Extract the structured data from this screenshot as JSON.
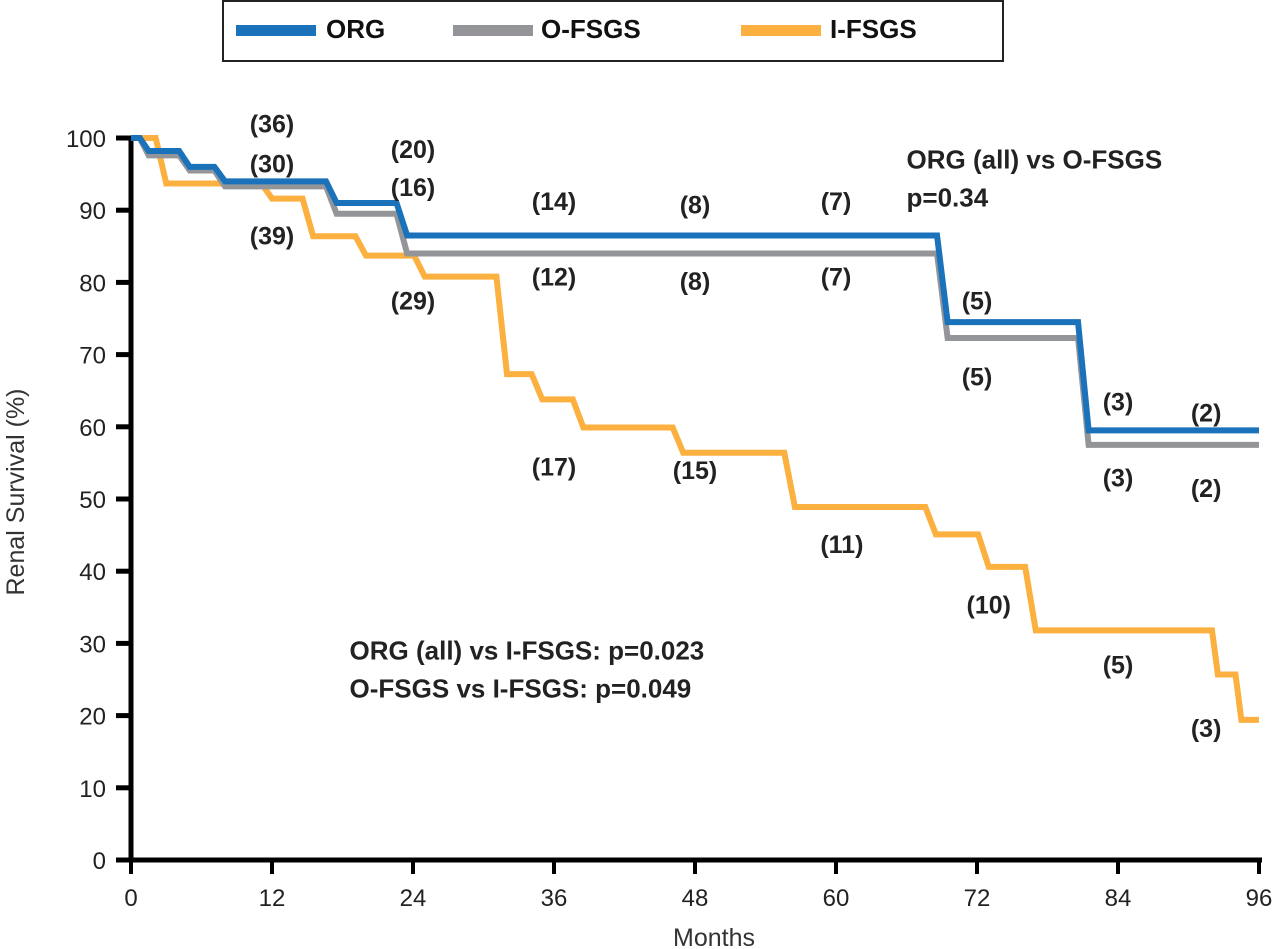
{
  "chart_data": {
    "type": "line",
    "subtype": "kaplan-meier step",
    "title": "",
    "xlabel": "Months",
    "ylabel": "Renal Survival (%)",
    "xlim": [
      0,
      96
    ],
    "ylim": [
      0,
      100
    ],
    "x_ticks": [
      0,
      12,
      24,
      36,
      48,
      60,
      72,
      84,
      96
    ],
    "y_ticks": [
      0,
      10,
      20,
      30,
      40,
      50,
      60,
      70,
      80,
      90,
      100
    ],
    "grid": false,
    "legend": {
      "placement": "top-center",
      "boxed": true,
      "entries": [
        "ORG",
        "O-FSGS",
        "I-FSGS"
      ]
    },
    "series": [
      {
        "name": "ORG",
        "color": "#1a72bb",
        "steps": [
          [
            0,
            100
          ],
          [
            1.5,
            98.2
          ],
          [
            5,
            96
          ],
          [
            8,
            94
          ],
          [
            17.5,
            91
          ],
          [
            23.5,
            86.5
          ],
          [
            69.5,
            74.5
          ],
          [
            81.5,
            59.5
          ],
          [
            96,
            59.5
          ]
        ]
      },
      {
        "name": "O-FSGS",
        "color": "#939598",
        "steps": [
          [
            0,
            100
          ],
          [
            1.5,
            97.6
          ],
          [
            5,
            95.5
          ],
          [
            8,
            93.3
          ],
          [
            17.5,
            89.5
          ],
          [
            23.5,
            84
          ],
          [
            69.5,
            72.3
          ],
          [
            81.5,
            57.5
          ],
          [
            96,
            57.5
          ]
        ]
      },
      {
        "name": "I-FSGS",
        "color": "#fbb040",
        "steps": [
          [
            0,
            100
          ],
          [
            3,
            93.7
          ],
          [
            12,
            91.6
          ],
          [
            15.5,
            86.4
          ],
          [
            20,
            83.7
          ],
          [
            25,
            80.8
          ],
          [
            32,
            67.3
          ],
          [
            35,
            63.8
          ],
          [
            38.5,
            59.9
          ],
          [
            47,
            56.4
          ],
          [
            56.5,
            48.9
          ],
          [
            68.5,
            45.1
          ],
          [
            73,
            40.6
          ],
          [
            74.5,
            40.6
          ],
          [
            77,
            31.8
          ],
          [
            91.5,
            31.8
          ],
          [
            92.5,
            25.7
          ],
          [
            93.5,
            25.7
          ],
          [
            94.5,
            19.4
          ],
          [
            96,
            19.4
          ]
        ]
      }
    ],
    "at_risk_labels": [
      {
        "series": "ORG",
        "x": 12,
        "y": 102,
        "text": "(36)"
      },
      {
        "series": "O-FSGS",
        "x": 12,
        "y": 96.5,
        "text": "(30)"
      },
      {
        "series": "I-FSGS",
        "x": 12,
        "y": 86.5,
        "text": "(39)"
      },
      {
        "series": "ORG",
        "x": 24,
        "y": 98.5,
        "text": "(20)"
      },
      {
        "series": "O-FSGS",
        "x": 24,
        "y": 93.2,
        "text": "(16)"
      },
      {
        "series": "I-FSGS",
        "x": 24,
        "y": 77.5,
        "text": "(29)"
      },
      {
        "series": "ORG",
        "x": 36,
        "y": 91.3,
        "text": "(14)"
      },
      {
        "series": "O-FSGS",
        "x": 36,
        "y": 80.8,
        "text": "(12)"
      },
      {
        "series": "ORG",
        "x": 48,
        "y": 90.8,
        "text": "(8)"
      },
      {
        "series": "O-FSGS",
        "x": 48,
        "y": 80.2,
        "text": "(8)"
      },
      {
        "series": "ORG",
        "x": 60,
        "y": 91.3,
        "text": "(7)"
      },
      {
        "series": "O-FSGS",
        "x": 60,
        "y": 80.8,
        "text": "(7)"
      },
      {
        "series": "ORG",
        "x": 72,
        "y": 77.5,
        "text": "(5)"
      },
      {
        "series": "O-FSGS",
        "x": 72,
        "y": 67,
        "text": "(5)"
      },
      {
        "series": "ORG",
        "x": 84,
        "y": 63.5,
        "text": "(3)"
      },
      {
        "series": "O-FSGS",
        "x": 84,
        "y": 53,
        "text": "(3)"
      },
      {
        "series": "ORG",
        "x": 91.5,
        "y": 62,
        "text": "(2)"
      },
      {
        "series": "O-FSGS",
        "x": 91.5,
        "y": 51.5,
        "text": "(2)"
      },
      {
        "series": "I-FSGS",
        "x": 36,
        "y": 54.5,
        "text": "(17)"
      },
      {
        "series": "I-FSGS",
        "x": 48,
        "y": 54,
        "text": "(15)"
      },
      {
        "series": "I-FSGS",
        "x": 60.5,
        "y": 43.8,
        "text": "(11)"
      },
      {
        "series": "I-FSGS",
        "x": 73,
        "y": 35.4,
        "text": "(10)"
      },
      {
        "series": "I-FSGS",
        "x": 84,
        "y": 27.1,
        "text": "(5)"
      },
      {
        "series": "I-FSGS",
        "x": 91.5,
        "y": 18.3,
        "text": "(3)"
      }
    ],
    "annotations": [
      {
        "id": "org-vs-ofsgs",
        "x": 66,
        "y": 97,
        "lines": [
          "ORG (all) vs O-FSGS",
          "p=0.34"
        ]
      },
      {
        "id": "vs-ifsgs",
        "x": 18.6,
        "y": 29,
        "lines": [
          "ORG (all) vs I-FSGS: p=0.023",
          "O-FSGS vs I-FSGS: p=0.049"
        ]
      }
    ]
  }
}
